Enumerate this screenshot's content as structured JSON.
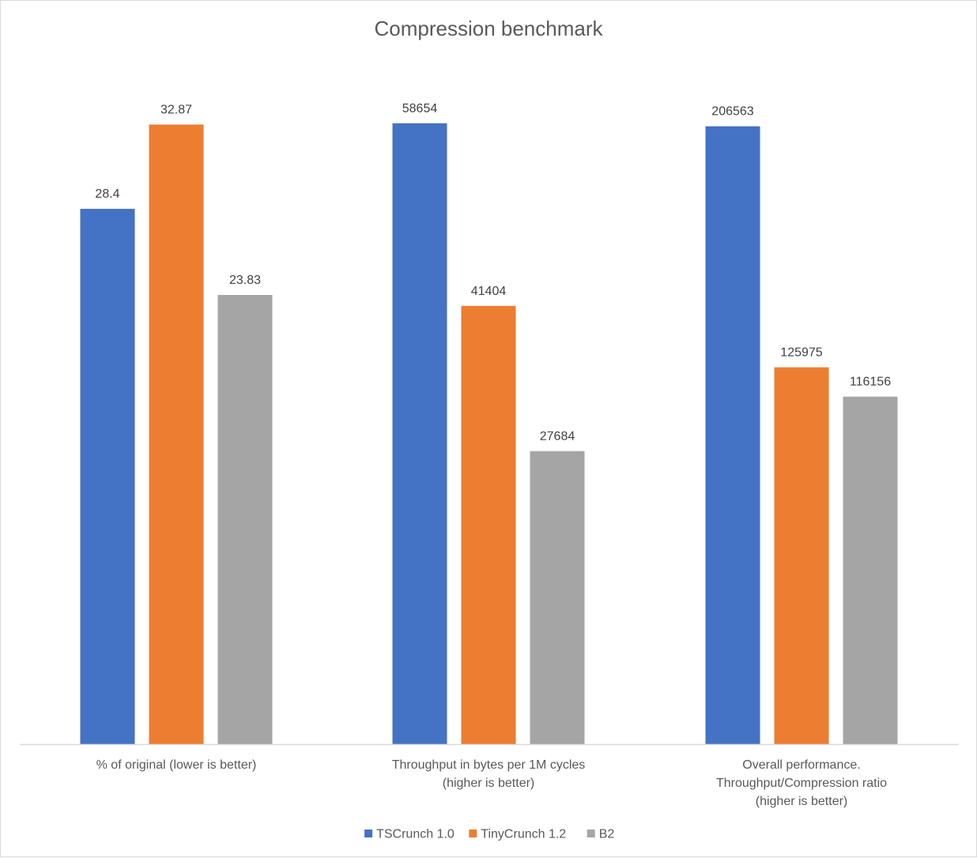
{
  "chart_data": {
    "type": "bar",
    "title": "Compression benchmark",
    "categories": [
      [
        "% of original (lower is better)"
      ],
      [
        "Throughput in bytes per 1M cycles",
        "(higher is better)"
      ],
      [
        "Overall performance.",
        "Throughput/Compression ratio",
        "(higher is better)"
      ]
    ],
    "series": [
      {
        "name": "TSCrunch 1.0",
        "color": "#4472C4",
        "values": [
          28.4,
          58654,
          206563
        ],
        "labels": [
          "28.4",
          "58654",
          "206563"
        ]
      },
      {
        "name": "TinyCrunch 1.2",
        "color": "#ED7D31",
        "values": [
          32.87,
          41404,
          125975
        ],
        "labels": [
          "32.87",
          "41404",
          "125975"
        ]
      },
      {
        "name": "B2",
        "color": "#A5A5A5",
        "values": [
          23.83,
          27684,
          116156
        ],
        "labels": [
          "23.83",
          "27684",
          "116156"
        ]
      }
    ],
    "axis_color": "#d9d9d9",
    "group_ymax": [
      36.5,
      65000,
      230000
    ],
    "legend_position": "bottom",
    "grid": false
  }
}
